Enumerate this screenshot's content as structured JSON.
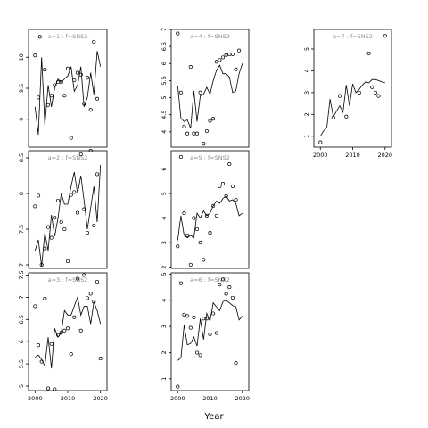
{
  "figure": {
    "xlabel": "Year",
    "strip_label_prefix": "a=",
    "strip_label_mid": " : f=",
    "colors": {
      "line": "#000000",
      "frame": "#000000",
      "strip_text": "#8c8c8c",
      "background": "#ffffff"
    }
  },
  "chart_data": [
    {
      "type": "line",
      "a": "1",
      "f": "SNS2",
      "xlim": [
        1998,
        2022
      ],
      "ylim": [
        8.55,
        10.45
      ],
      "x_ticks": [],
      "y_ticks": [
        9.0,
        9.5,
        10.0
      ],
      "line_x": [
        2000,
        2001,
        2002,
        2003,
        2004,
        2005,
        2006,
        2007,
        2008,
        2009,
        2010,
        2011,
        2012,
        2013,
        2014,
        2015,
        2016,
        2017,
        2018,
        2019,
        2020
      ],
      "line_y": [
        9.2,
        8.75,
        10.0,
        8.9,
        9.55,
        9.2,
        9.5,
        9.65,
        9.6,
        9.65,
        9.7,
        9.85,
        9.45,
        9.55,
        9.85,
        9.2,
        9.35,
        9.75,
        9.4,
        10.1,
        9.85
      ],
      "points": [
        [
          2000,
          10.03
        ],
        [
          2001,
          9.35
        ],
        [
          2001.5,
          10.33
        ],
        [
          2003,
          9.8
        ],
        [
          2004,
          9.23
        ],
        [
          2005,
          9.38
        ],
        [
          2006,
          9.55
        ],
        [
          2007,
          9.6
        ],
        [
          2008,
          9.6
        ],
        [
          2009,
          9.38
        ],
        [
          2010,
          9.82
        ],
        [
          2011,
          8.7
        ],
        [
          2012,
          9.63
        ],
        [
          2013,
          9.75
        ],
        [
          2014,
          9.72
        ],
        [
          2015,
          9.25
        ],
        [
          2016,
          9.67
        ],
        [
          2017,
          9.15
        ],
        [
          2018,
          10.25
        ],
        [
          2019,
          9.33
        ]
      ]
    },
    {
      "type": "line",
      "a": "2",
      "f": "SNS2",
      "xlim": [
        1998,
        2022
      ],
      "ylim": [
        6.95,
        8.6
      ],
      "x_ticks": [],
      "y_ticks": [
        7.0,
        7.5,
        8.0,
        8.5
      ],
      "line_x": [
        2000,
        2001,
        2002,
        2003,
        2004,
        2005,
        2006,
        2007,
        2008,
        2009,
        2010,
        2011,
        2012,
        2013,
        2014,
        2015,
        2016,
        2017,
        2018,
        2019,
        2020
      ],
      "line_y": [
        7.2,
        7.35,
        6.98,
        7.45,
        7.2,
        7.7,
        7.4,
        7.65,
        8.0,
        7.85,
        7.85,
        8.1,
        8.3,
        8.0,
        8.25,
        7.9,
        7.5,
        7.8,
        8.1,
        7.6,
        8.4
      ],
      "points": [
        [
          2000,
          7.82
        ],
        [
          2001,
          7.97
        ],
        [
          2002,
          7.0
        ],
        [
          2003,
          7.23
        ],
        [
          2004,
          7.53
        ],
        [
          2005,
          7.38
        ],
        [
          2006,
          7.66
        ],
        [
          2007,
          7.9
        ],
        [
          2008,
          7.6
        ],
        [
          2009,
          7.5
        ],
        [
          2010,
          7.05
        ],
        [
          2011,
          7.98
        ],
        [
          2012,
          8.02
        ],
        [
          2013,
          7.73
        ],
        [
          2014,
          8.55
        ],
        [
          2015,
          7.78
        ],
        [
          2016,
          7.45
        ],
        [
          2017,
          8.6
        ],
        [
          2018,
          7.55
        ],
        [
          2019,
          8.27
        ]
      ]
    },
    {
      "type": "line",
      "a": "3",
      "f": "SNS2",
      "xlim": [
        1998,
        2022
      ],
      "ylim": [
        4.9,
        7.55
      ],
      "x_ticks": [
        2000,
        2010,
        2020
      ],
      "y_ticks": [
        5.0,
        5.5,
        6.0,
        6.5,
        7.0,
        7.5
      ],
      "line_x": [
        2000,
        2001,
        2002,
        2003,
        2004,
        2005,
        2006,
        2007,
        2008,
        2009,
        2010,
        2011,
        2012,
        2013,
        2014,
        2015,
        2016,
        2017,
        2018,
        2019,
        2020
      ],
      "line_y": [
        5.65,
        5.7,
        5.6,
        5.45,
        6.1,
        5.4,
        6.3,
        6.1,
        6.2,
        6.7,
        6.6,
        6.6,
        6.8,
        7.0,
        6.6,
        6.8,
        6.8,
        6.4,
        6.9,
        6.7,
        6.4
      ],
      "points": [
        [
          2000,
          6.8
        ],
        [
          2001,
          5.92
        ],
        [
          2002,
          5.55
        ],
        [
          2003,
          6.97
        ],
        [
          2004,
          4.95
        ],
        [
          2005,
          5.95
        ],
        [
          2006,
          4.93
        ],
        [
          2007,
          6.15
        ],
        [
          2008,
          6.2
        ],
        [
          2009,
          6.25
        ],
        [
          2010,
          6.3
        ],
        [
          2011,
          5.72
        ],
        [
          2012,
          6.55
        ],
        [
          2013,
          7.42
        ],
        [
          2014,
          6.25
        ],
        [
          2015,
          7.5
        ],
        [
          2016,
          6.98
        ],
        [
          2017,
          7.08
        ],
        [
          2018,
          6.9
        ],
        [
          2019,
          7.35
        ],
        [
          2020,
          5.62
        ]
      ]
    },
    {
      "type": "line",
      "a": "4",
      "f": "SNS2",
      "xlim": [
        1998,
        2022
      ],
      "ylim": [
        3.55,
        7.0
      ],
      "x_ticks": [],
      "y_ticks": [
        4.0,
        4.5,
        5.0,
        5.5,
        6.0,
        6.5,
        7.0
      ],
      "line_x": [
        2000,
        2001,
        2002,
        2003,
        2004,
        2005,
        2006,
        2007,
        2008,
        2009,
        2010,
        2011,
        2012,
        2013,
        2014,
        2015,
        2016,
        2017,
        2018,
        2019,
        2020
      ],
      "line_y": [
        5.35,
        4.4,
        4.3,
        4.35,
        4.1,
        5.2,
        4.3,
        5.05,
        5.1,
        5.3,
        5.1,
        5.5,
        5.8,
        5.95,
        5.7,
        5.7,
        5.6,
        5.15,
        5.2,
        5.7,
        6.0
      ],
      "points": [
        [
          2000,
          6.88
        ],
        [
          2001,
          5.15
        ],
        [
          2002,
          4.15
        ],
        [
          2003,
          3.95
        ],
        [
          2004,
          5.9
        ],
        [
          2005,
          3.95
        ],
        [
          2006,
          3.95
        ],
        [
          2007,
          5.15
        ],
        [
          2008,
          3.65
        ],
        [
          2009,
          4.02
        ],
        [
          2010,
          4.32
        ],
        [
          2011,
          4.38
        ],
        [
          2012,
          6.05
        ],
        [
          2013,
          6.1
        ],
        [
          2014,
          6.18
        ],
        [
          2015,
          6.25
        ],
        [
          2016,
          6.27
        ],
        [
          2017,
          6.27
        ],
        [
          2018,
          5.83
        ],
        [
          2019,
          6.38
        ]
      ]
    },
    {
      "type": "line",
      "a": "5",
      "f": "SNS2",
      "xlim": [
        1998,
        2022
      ],
      "ylim": [
        1.95,
        6.75
      ],
      "x_ticks": [],
      "y_ticks": [
        2,
        3,
        4,
        5,
        6
      ],
      "line_x": [
        2000,
        2001,
        2002,
        2003,
        2004,
        2005,
        2006,
        2007,
        2008,
        2009,
        2010,
        2011,
        2012,
        2013,
        2014,
        2015,
        2016,
        2017,
        2018,
        2019,
        2020
      ],
      "line_y": [
        3.1,
        4.1,
        3.3,
        3.2,
        3.3,
        3.2,
        4.2,
        4.0,
        4.3,
        4.1,
        4.2,
        4.5,
        4.7,
        4.6,
        4.8,
        4.9,
        4.7,
        4.75,
        4.6,
        4.1,
        4.2
      ],
      "points": [
        [
          2000,
          2.85
        ],
        [
          2001,
          6.5
        ],
        [
          2002,
          4.2
        ],
        [
          2003,
          3.3
        ],
        [
          2004,
          2.1
        ],
        [
          2005,
          4.0
        ],
        [
          2006,
          3.55
        ],
        [
          2007,
          3.0
        ],
        [
          2008,
          2.3
        ],
        [
          2009,
          4.1
        ],
        [
          2010,
          3.4
        ],
        [
          2011,
          4.5
        ],
        [
          2012,
          4.1
        ],
        [
          2013,
          5.3
        ],
        [
          2014,
          5.4
        ],
        [
          2015,
          4.9
        ],
        [
          2016,
          6.2
        ],
        [
          2017,
          5.3
        ],
        [
          2018,
          4.75
        ]
      ]
    },
    {
      "type": "line",
      "a": "6",
      "f": "SNS2",
      "xlim": [
        1998,
        2022
      ],
      "ylim": [
        0.55,
        5.05
      ],
      "x_ticks": [
        2000,
        2010,
        2020
      ],
      "y_ticks": [
        1,
        2,
        3,
        4,
        5
      ],
      "line_x": [
        2000,
        2001,
        2002,
        2003,
        2004,
        2005,
        2006,
        2007,
        2008,
        2009,
        2010,
        2011,
        2012,
        2013,
        2014,
        2015,
        2016,
        2017,
        2018,
        2019,
        2020
      ],
      "line_y": [
        1.7,
        1.8,
        3.05,
        2.3,
        2.35,
        2.6,
        2.25,
        3.3,
        2.5,
        3.5,
        3.2,
        3.9,
        3.75,
        3.6,
        3.95,
        4.0,
        3.9,
        3.8,
        3.75,
        3.25,
        3.4
      ],
      "points": [
        [
          2000,
          0.7
        ],
        [
          2001,
          4.65
        ],
        [
          2002,
          3.45
        ],
        [
          2003,
          3.4
        ],
        [
          2004,
          2.95
        ],
        [
          2005,
          3.35
        ],
        [
          2006,
          2.0
        ],
        [
          2007,
          1.9
        ],
        [
          2008,
          3.3
        ],
        [
          2009,
          3.3
        ],
        [
          2010,
          2.7
        ],
        [
          2011,
          3.5
        ],
        [
          2012,
          2.75
        ],
        [
          2013,
          4.6
        ],
        [
          2014,
          4.8
        ],
        [
          2015,
          4.25
        ],
        [
          2016,
          4.5
        ],
        [
          2017,
          4.1
        ],
        [
          2018,
          1.6
        ]
      ]
    },
    {
      "type": "line",
      "a": "7",
      "f": "SNS2",
      "xlim": [
        1998,
        2022
      ],
      "ylim": [
        0.5,
        5.9
      ],
      "x_ticks": [
        2000,
        2010,
        2020
      ],
      "y_ticks": [
        1,
        2,
        3,
        4,
        5
      ],
      "line_x": [
        2000,
        2001,
        2002,
        2003,
        2004,
        2005,
        2006,
        2007,
        2008,
        2009,
        2010,
        2011,
        2012,
        2013,
        2014,
        2015,
        2016,
        2017,
        2018,
        2019,
        2020
      ],
      "line_y": [
        1.0,
        1.25,
        1.4,
        2.7,
        1.9,
        2.15,
        2.4,
        2.1,
        3.35,
        2.4,
        3.4,
        3.0,
        3.15,
        3.35,
        3.5,
        3.45,
        3.6,
        3.6,
        3.55,
        3.5,
        3.45
      ],
      "points": [
        [
          2000,
          0.72
        ],
        [
          2004,
          1.85
        ],
        [
          2006,
          2.85
        ],
        [
          2008,
          1.9
        ],
        [
          2012,
          3.0
        ],
        [
          2015,
          4.8
        ],
        [
          2016,
          3.25
        ],
        [
          2017,
          3.0
        ],
        [
          2018,
          2.85
        ],
        [
          2020,
          5.6
        ]
      ]
    }
  ]
}
